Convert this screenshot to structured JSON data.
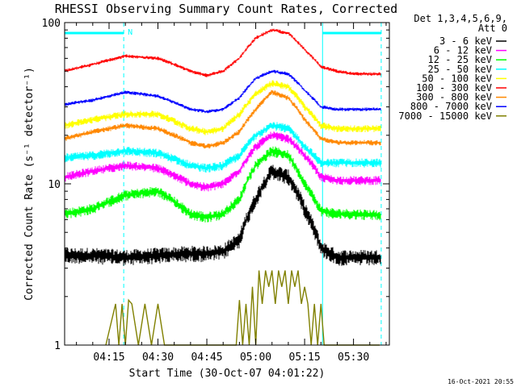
{
  "chart_data": {
    "type": "line",
    "title": "RHESSI Observing Summary Count Rates, Corrected",
    "xlabel": "Start Time (30-Oct-07 04:01:22)",
    "ylabel": "Corrected Count Rate (s⁻¹ detector⁻¹)",
    "x_unit": "minutes after 04:00 UT",
    "x_range": [
      1.37,
      101.0
    ],
    "xticks": [
      {
        "value": 15,
        "label": "04:15"
      },
      {
        "value": 30,
        "label": "04:30"
      },
      {
        "value": 45,
        "label": "04:45"
      },
      {
        "value": 60,
        "label": "05:00"
      },
      {
        "value": 75,
        "label": "05:15"
      },
      {
        "value": 90,
        "label": "05:30"
      }
    ],
    "y_scale": "log",
    "ylim": [
      1,
      100
    ],
    "yticks": [
      {
        "value": 1,
        "label": "1"
      },
      {
        "value": 10,
        "label": "10"
      },
      {
        "value": 100,
        "label": "100"
      }
    ],
    "legend_title": [
      "Det 1,3,4,5,6,9,",
      "Att 0"
    ],
    "legend_position": "top-right, outside plot",
    "annotations": {
      "night_bars": [
        {
          "start": 1.37,
          "end": 19.5,
          "label": "N"
        },
        {
          "start": 80.5,
          "end": 98.5,
          "label": ""
        }
      ],
      "vertical_lines": [
        {
          "x": 19.5,
          "style": "dashed",
          "color": "#00ffff"
        },
        {
          "x": 80.5,
          "style": "solid",
          "color": "#00ffff"
        },
        {
          "x": 98.5,
          "style": "dashed",
          "color": "#00ffff"
        }
      ]
    },
    "timestamp": "16-Oct-2021 20:55",
    "series": [
      {
        "name": "3 - 6 keV",
        "color": "#000000",
        "noise": 0.09,
        "x": [
          1.37,
          10,
          20,
          30,
          40,
          45,
          50,
          55,
          60,
          65,
          70,
          75,
          80,
          85,
          90,
          98.5
        ],
        "y": [
          3.6,
          3.6,
          3.5,
          3.6,
          3.7,
          3.7,
          3.8,
          4.5,
          8.0,
          12,
          11,
          7.0,
          4.0,
          3.5,
          3.5,
          3.5
        ]
      },
      {
        "name": "6 - 12 keV",
        "color": "#ff00ff",
        "noise": 0.05,
        "x": [
          1.37,
          10,
          20,
          30,
          40,
          45,
          50,
          55,
          60,
          65,
          70,
          75,
          80,
          85,
          90,
          98.5
        ],
        "y": [
          11,
          12,
          13,
          12.5,
          10,
          9.5,
          10,
          12,
          17,
          20,
          19,
          15,
          11,
          10.5,
          10.5,
          10.5
        ]
      },
      {
        "name": "12 - 25 keV",
        "color": "#00ff00",
        "noise": 0.06,
        "x": [
          1.37,
          10,
          20,
          30,
          40,
          45,
          50,
          55,
          60,
          65,
          70,
          75,
          80,
          85,
          90,
          98.5
        ],
        "y": [
          6.5,
          7.0,
          8.5,
          9.0,
          6.5,
          6.2,
          6.5,
          8.0,
          13,
          16,
          15,
          10,
          6.8,
          6.5,
          6.5,
          6.4
        ]
      },
      {
        "name": "25 - 50 keV",
        "color": "#00ffff",
        "noise": 0.05,
        "x": [
          1.37,
          10,
          20,
          30,
          40,
          45,
          50,
          55,
          60,
          65,
          70,
          75,
          80,
          85,
          90,
          98.5
        ],
        "y": [
          14.5,
          15,
          16,
          15.5,
          13,
          12.5,
          13,
          15,
          20,
          23,
          22,
          17,
          13.5,
          13.5,
          13.5,
          13.5
        ]
      },
      {
        "name": "50 - 100 keV",
        "color": "#ffff00",
        "noise": 0.04,
        "x": [
          1.37,
          10,
          20,
          30,
          40,
          45,
          50,
          55,
          60,
          65,
          70,
          75,
          80,
          85,
          90,
          98.5
        ],
        "y": [
          23,
          25,
          27,
          27,
          22,
          21,
          22,
          27,
          36,
          42,
          40,
          30,
          23,
          22,
          22,
          22
        ]
      },
      {
        "name": "100 - 300 keV",
        "color": "#ff0000",
        "noise": 0.02,
        "x": [
          1.37,
          10,
          20,
          30,
          40,
          45,
          50,
          55,
          60,
          65,
          70,
          75,
          80,
          85,
          90,
          98.5
        ],
        "y": [
          50,
          55,
          62,
          60,
          50,
          47,
          50,
          60,
          80,
          90,
          86,
          68,
          53,
          50,
          48,
          48
        ]
      },
      {
        "name": "300 - 800 keV",
        "color": "#ff8800",
        "noise": 0.03,
        "x": [
          1.37,
          10,
          20,
          30,
          40,
          45,
          50,
          55,
          60,
          65,
          70,
          75,
          80,
          85,
          90,
          98.5
        ],
        "y": [
          19,
          21,
          23,
          22,
          18,
          17,
          18,
          21,
          29,
          37,
          34,
          25,
          19,
          18,
          18,
          18
        ]
      },
      {
        "name": "800 - 7000 keV",
        "color": "#0000ff",
        "noise": 0.02,
        "x": [
          1.37,
          10,
          20,
          30,
          40,
          45,
          50,
          55,
          60,
          65,
          70,
          75,
          80,
          85,
          90,
          98.5
        ],
        "y": [
          31,
          33,
          37,
          35,
          29,
          28,
          29,
          34,
          45,
          50,
          48,
          38,
          30,
          29,
          29,
          29
        ]
      },
      {
        "name": "7000 - 15000 keV",
        "color": "#808000",
        "noise": 0,
        "x": [
          14,
          17,
          18,
          19,
          20,
          21,
          22,
          24,
          26,
          28,
          30,
          32,
          34,
          36,
          38,
          40,
          42,
          44,
          46,
          48,
          50,
          52,
          54,
          55,
          56,
          57,
          58,
          59,
          60,
          61,
          62,
          63,
          64,
          65,
          66,
          67,
          68,
          69,
          70,
          71,
          72,
          73,
          74,
          75,
          76,
          77,
          78,
          79,
          80,
          81,
          82,
          84,
          86,
          88,
          90,
          92,
          94,
          96,
          98
        ],
        "y": [
          1,
          1.8,
          1,
          1.8,
          1,
          1.9,
          1.8,
          1,
          1.8,
          1,
          1.8,
          1,
          1,
          1,
          1,
          1,
          1,
          1,
          1,
          1,
          1,
          1,
          1,
          1.9,
          1,
          1.8,
          1,
          2.3,
          1,
          2.9,
          1.8,
          2.9,
          2.3,
          2.9,
          1.8,
          2.9,
          2.3,
          2.9,
          1.8,
          2.9,
          2.3,
          2.9,
          1.8,
          2.3,
          1.8,
          1,
          1.8,
          1,
          1.8,
          1,
          1,
          1,
          1,
          1,
          1,
          1,
          1,
          1,
          1
        ]
      }
    ]
  }
}
